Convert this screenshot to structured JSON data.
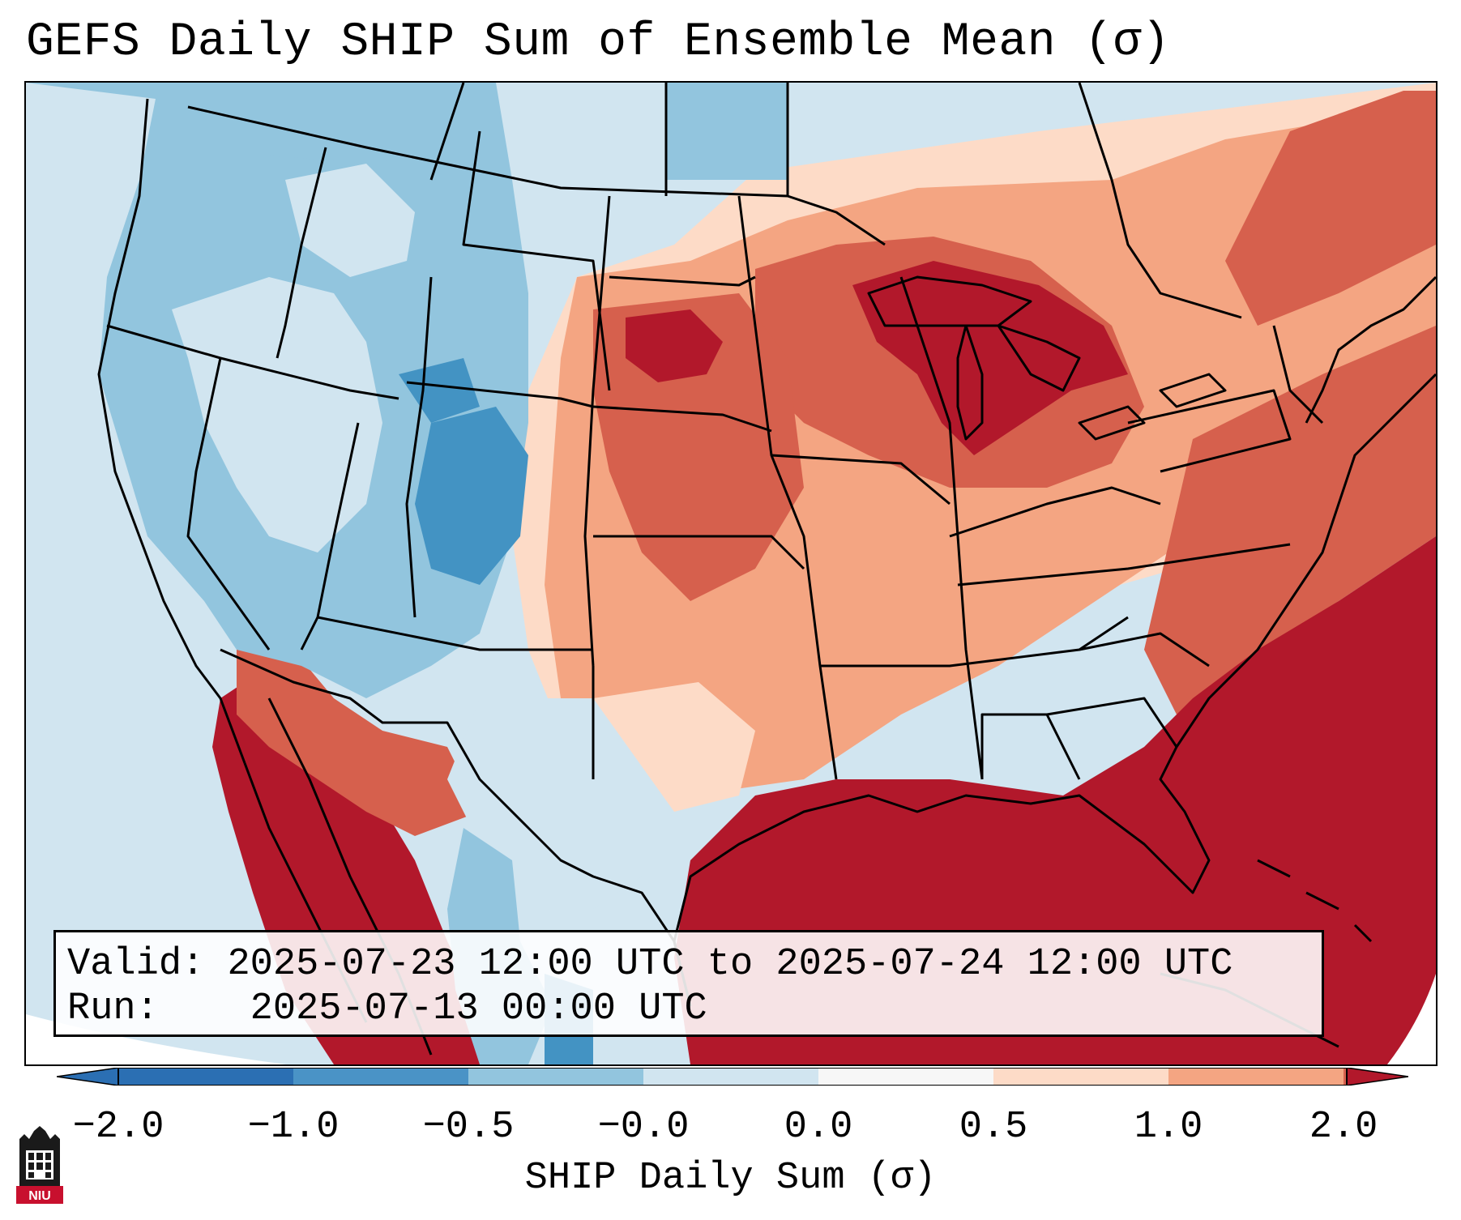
{
  "title": "GEFS Daily SHIP Sum of Ensemble Mean (σ)",
  "info": {
    "valid_label": "Valid:",
    "valid_value": "2025-07-23 12:00 UTC to 2025-07-24 12:00 UTC",
    "run_label": "Run:",
    "run_value": "2025-07-13 00:00 UTC"
  },
  "colorbar": {
    "label": "SHIP Daily Sum (σ)",
    "ticks": [
      "−2.0",
      "−1.0",
      "−0.5",
      "−0.0",
      "0.0",
      "0.5",
      "1.0",
      "2.0"
    ],
    "colors": [
      "#2b6fb3",
      "#4a93c6",
      "#92c5de",
      "#d1e5f0",
      "#f7f7f7",
      "#fddbc7",
      "#f4a582",
      "#d6604d",
      "#b2182b"
    ]
  },
  "logo_text": "NIU",
  "regions": {
    "west_us": "below normal (blue)",
    "central_east_us": "above normal (red)",
    "gulf_atlantic": "well above normal (dark red)"
  }
}
